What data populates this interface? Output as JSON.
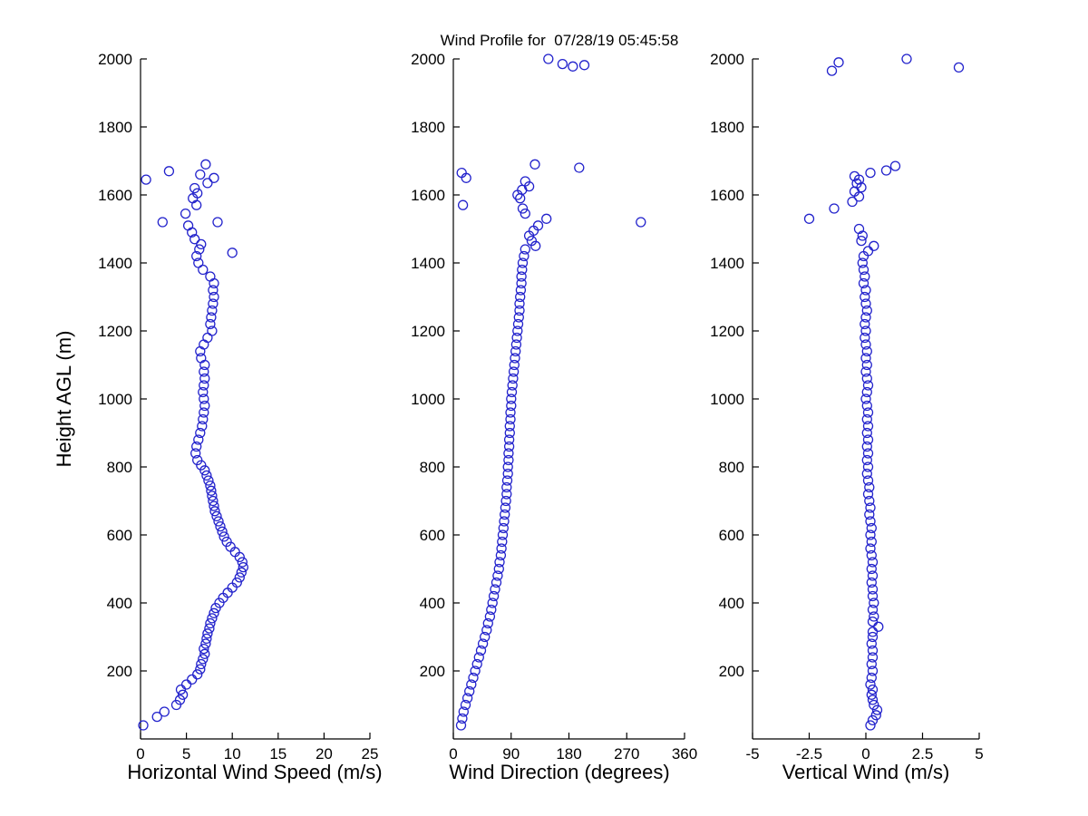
{
  "figure": {
    "title": "Wind Profile for  07/28/19 05:45:58",
    "ylabel": "Height AGL (m)",
    "background_color": "#ffffff",
    "axis_color": "#000000",
    "marker_color": "#2323cc"
  },
  "chart_data": [
    {
      "type": "scatter",
      "name": "horizontal-wind-speed",
      "xlabel": "Horizontal Wind Speed (m/s)",
      "ylabel": "Height AGL (m)",
      "xlim": [
        0,
        25
      ],
      "ylim": [
        0,
        2000
      ],
      "xticks": [
        0,
        5,
        10,
        15,
        20,
        25
      ],
      "yticks": [
        200,
        400,
        600,
        800,
        1000,
        1200,
        1400,
        1600,
        1800,
        2000
      ],
      "marker": "open-circle",
      "points": [
        [
          0.3,
          40
        ],
        [
          1.8,
          65
        ],
        [
          2.6,
          80
        ],
        [
          3.9,
          100
        ],
        [
          4.3,
          115
        ],
        [
          4.6,
          130
        ],
        [
          4.4,
          145
        ],
        [
          5.0,
          160
        ],
        [
          5.6,
          175
        ],
        [
          6.2,
          190
        ],
        [
          6.5,
          205
        ],
        [
          6.6,
          220
        ],
        [
          6.8,
          235
        ],
        [
          7.0,
          250
        ],
        [
          6.9,
          265
        ],
        [
          7.1,
          280
        ],
        [
          7.2,
          295
        ],
        [
          7.3,
          310
        ],
        [
          7.5,
          325
        ],
        [
          7.6,
          340
        ],
        [
          7.8,
          355
        ],
        [
          8.0,
          370
        ],
        [
          8.2,
          385
        ],
        [
          8.6,
          400
        ],
        [
          9.0,
          415
        ],
        [
          9.5,
          430
        ],
        [
          10.0,
          445
        ],
        [
          10.5,
          460
        ],
        [
          10.8,
          475
        ],
        [
          11.0,
          490
        ],
        [
          11.2,
          505
        ],
        [
          11.1,
          520
        ],
        [
          10.8,
          535
        ],
        [
          10.3,
          550
        ],
        [
          9.8,
          565
        ],
        [
          9.4,
          580
        ],
        [
          9.1,
          595
        ],
        [
          8.9,
          610
        ],
        [
          8.7,
          625
        ],
        [
          8.5,
          640
        ],
        [
          8.3,
          655
        ],
        [
          8.1,
          670
        ],
        [
          8.0,
          685
        ],
        [
          7.9,
          700
        ],
        [
          7.8,
          715
        ],
        [
          7.7,
          730
        ],
        [
          7.6,
          745
        ],
        [
          7.4,
          760
        ],
        [
          7.2,
          775
        ],
        [
          7.0,
          790
        ],
        [
          6.6,
          805
        ],
        [
          6.2,
          820
        ],
        [
          6.0,
          840
        ],
        [
          6.1,
          860
        ],
        [
          6.3,
          880
        ],
        [
          6.5,
          900
        ],
        [
          6.7,
          920
        ],
        [
          6.8,
          940
        ],
        [
          6.9,
          960
        ],
        [
          7.0,
          980
        ],
        [
          6.9,
          1000
        ],
        [
          6.8,
          1020
        ],
        [
          6.9,
          1040
        ],
        [
          7.0,
          1060
        ],
        [
          6.9,
          1080
        ],
        [
          7.0,
          1100
        ],
        [
          6.6,
          1120
        ],
        [
          6.5,
          1140
        ],
        [
          6.9,
          1160
        ],
        [
          7.3,
          1180
        ],
        [
          7.8,
          1200
        ],
        [
          7.6,
          1220
        ],
        [
          7.7,
          1240
        ],
        [
          7.8,
          1260
        ],
        [
          7.9,
          1280
        ],
        [
          8.0,
          1300
        ],
        [
          7.9,
          1320
        ],
        [
          8.0,
          1340
        ],
        [
          7.6,
          1360
        ],
        [
          6.8,
          1380
        ],
        [
          6.3,
          1400
        ],
        [
          6.1,
          1420
        ],
        [
          10.0,
          1430
        ],
        [
          6.4,
          1440
        ],
        [
          6.6,
          1455
        ],
        [
          5.9,
          1470
        ],
        [
          5.6,
          1490
        ],
        [
          5.2,
          1510
        ],
        [
          8.4,
          1520
        ],
        [
          2.4,
          1520
        ],
        [
          4.9,
          1545
        ],
        [
          6.1,
          1570
        ],
        [
          5.7,
          1590
        ],
        [
          6.2,
          1605
        ],
        [
          5.9,
          1620
        ],
        [
          7.3,
          1635
        ],
        [
          0.6,
          1645
        ],
        [
          8.0,
          1650
        ],
        [
          6.5,
          1660
        ],
        [
          3.1,
          1670
        ],
        [
          7.1,
          1690
        ]
      ]
    },
    {
      "type": "scatter",
      "name": "wind-direction",
      "xlabel": "Wind Direction (degrees)",
      "ylabel": "Height AGL (m)",
      "xlim": [
        0,
        360
      ],
      "ylim": [
        0,
        2000
      ],
      "xticks": [
        0,
        90,
        180,
        270,
        360
      ],
      "yticks": [
        200,
        400,
        600,
        800,
        1000,
        1200,
        1400,
        1600,
        1800,
        2000
      ],
      "marker": "open-circle",
      "points": [
        [
          12,
          40
        ],
        [
          14,
          60
        ],
        [
          16,
          80
        ],
        [
          19,
          100
        ],
        [
          22,
          120
        ],
        [
          25,
          140
        ],
        [
          28,
          160
        ],
        [
          31,
          180
        ],
        [
          34,
          200
        ],
        [
          37,
          220
        ],
        [
          40,
          240
        ],
        [
          43,
          260
        ],
        [
          46,
          280
        ],
        [
          49,
          300
        ],
        [
          52,
          320
        ],
        [
          54,
          340
        ],
        [
          57,
          360
        ],
        [
          59,
          380
        ],
        [
          61,
          400
        ],
        [
          63,
          420
        ],
        [
          65,
          440
        ],
        [
          67,
          460
        ],
        [
          69,
          480
        ],
        [
          71,
          500
        ],
        [
          72,
          520
        ],
        [
          74,
          540
        ],
        [
          75,
          560
        ],
        [
          76,
          580
        ],
        [
          77,
          600
        ],
        [
          78,
          620
        ],
        [
          79,
          640
        ],
        [
          80,
          660
        ],
        [
          81,
          680
        ],
        [
          82,
          700
        ],
        [
          83,
          720
        ],
        [
          83,
          740
        ],
        [
          84,
          760
        ],
        [
          85,
          780
        ],
        [
          85,
          800
        ],
        [
          86,
          820
        ],
        [
          86,
          840
        ],
        [
          87,
          860
        ],
        [
          87,
          880
        ],
        [
          88,
          900
        ],
        [
          88,
          920
        ],
        [
          89,
          940
        ],
        [
          89,
          960
        ],
        [
          90,
          980
        ],
        [
          90,
          1000
        ],
        [
          91,
          1020
        ],
        [
          92,
          1040
        ],
        [
          93,
          1060
        ],
        [
          94,
          1080
        ],
        [
          95,
          1100
        ],
        [
          96,
          1120
        ],
        [
          97,
          1140
        ],
        [
          98,
          1160
        ],
        [
          99,
          1180
        ],
        [
          100,
          1200
        ],
        [
          101,
          1220
        ],
        [
          102,
          1240
        ],
        [
          103,
          1260
        ],
        [
          103,
          1280
        ],
        [
          104,
          1300
        ],
        [
          105,
          1320
        ],
        [
          106,
          1340
        ],
        [
          106,
          1360
        ],
        [
          107,
          1380
        ],
        [
          108,
          1400
        ],
        [
          110,
          1420
        ],
        [
          112,
          1440
        ],
        [
          128,
          1450
        ],
        [
          122,
          1465
        ],
        [
          118,
          1480
        ],
        [
          125,
          1495
        ],
        [
          132,
          1510
        ],
        [
          292,
          1520
        ],
        [
          145,
          1530
        ],
        [
          112,
          1545
        ],
        [
          108,
          1560
        ],
        [
          15,
          1570
        ],
        [
          104,
          1590
        ],
        [
          100,
          1600
        ],
        [
          107,
          1615
        ],
        [
          118,
          1625
        ],
        [
          112,
          1640
        ],
        [
          20,
          1650
        ],
        [
          13,
          1665
        ],
        [
          196,
          1680
        ],
        [
          127,
          1690
        ],
        [
          148,
          2000
        ],
        [
          170,
          1985
        ],
        [
          186,
          1978
        ],
        [
          204,
          1982
        ]
      ]
    },
    {
      "type": "scatter",
      "name": "vertical-wind",
      "xlabel": "Vertical Wind (m/s)",
      "ylabel": "Height AGL (m)",
      "xlim": [
        -5,
        5
      ],
      "ylim": [
        0,
        2000
      ],
      "xticks": [
        -5,
        -2.5,
        0,
        2.5,
        5
      ],
      "yticks": [
        200,
        400,
        600,
        800,
        1000,
        1200,
        1400,
        1600,
        1800,
        2000
      ],
      "marker": "open-circle",
      "points": [
        [
          0.2,
          40
        ],
        [
          0.3,
          55
        ],
        [
          0.45,
          70
        ],
        [
          0.5,
          85
        ],
        [
          0.35,
          100
        ],
        [
          0.3,
          115
        ],
        [
          0.25,
          130
        ],
        [
          0.3,
          145
        ],
        [
          0.2,
          160
        ],
        [
          0.25,
          180
        ],
        [
          0.3,
          200
        ],
        [
          0.25,
          220
        ],
        [
          0.3,
          240
        ],
        [
          0.3,
          260
        ],
        [
          0.25,
          280
        ],
        [
          0.3,
          300
        ],
        [
          0.3,
          315
        ],
        [
          0.55,
          330
        ],
        [
          0.3,
          345
        ],
        [
          0.35,
          360
        ],
        [
          0.3,
          380
        ],
        [
          0.35,
          400
        ],
        [
          0.3,
          420
        ],
        [
          0.3,
          440
        ],
        [
          0.25,
          460
        ],
        [
          0.3,
          480
        ],
        [
          0.25,
          500
        ],
        [
          0.3,
          520
        ],
        [
          0.25,
          540
        ],
        [
          0.2,
          560
        ],
        [
          0.25,
          580
        ],
        [
          0.2,
          600
        ],
        [
          0.25,
          620
        ],
        [
          0.2,
          640
        ],
        [
          0.15,
          660
        ],
        [
          0.2,
          680
        ],
        [
          0.15,
          700
        ],
        [
          0.1,
          720
        ],
        [
          0.15,
          740
        ],
        [
          0.1,
          760
        ],
        [
          0.05,
          780
        ],
        [
          0.1,
          800
        ],
        [
          0.05,
          820
        ],
        [
          0.1,
          840
        ],
        [
          0.05,
          860
        ],
        [
          0.1,
          880
        ],
        [
          0.05,
          900
        ],
        [
          0.1,
          920
        ],
        [
          0.05,
          940
        ],
        [
          0.1,
          960
        ],
        [
          0.05,
          980
        ],
        [
          0,
          1000
        ],
        [
          0.05,
          1020
        ],
        [
          0.1,
          1040
        ],
        [
          0.05,
          1060
        ],
        [
          0,
          1080
        ],
        [
          0.05,
          1100
        ],
        [
          0,
          1120
        ],
        [
          0.05,
          1140
        ],
        [
          0,
          1160
        ],
        [
          -0.05,
          1180
        ],
        [
          0,
          1200
        ],
        [
          -0.05,
          1220
        ],
        [
          0,
          1240
        ],
        [
          0.05,
          1260
        ],
        [
          0,
          1280
        ],
        [
          -0.05,
          1300
        ],
        [
          0,
          1320
        ],
        [
          -0.1,
          1340
        ],
        [
          -0.05,
          1360
        ],
        [
          -0.1,
          1380
        ],
        [
          -0.15,
          1400
        ],
        [
          -0.1,
          1420
        ],
        [
          0.1,
          1435
        ],
        [
          0.35,
          1450
        ],
        [
          -0.2,
          1465
        ],
        [
          -0.15,
          1480
        ],
        [
          -0.3,
          1500
        ],
        [
          -2.5,
          1530
        ],
        [
          -1.4,
          1560
        ],
        [
          -0.6,
          1580
        ],
        [
          -0.3,
          1595
        ],
        [
          -0.5,
          1610
        ],
        [
          -0.2,
          1622
        ],
        [
          -0.4,
          1634
        ],
        [
          -0.3,
          1645
        ],
        [
          -0.5,
          1655
        ],
        [
          0.2,
          1665
        ],
        [
          0.9,
          1672
        ],
        [
          1.3,
          1685
        ],
        [
          -1.5,
          1965
        ],
        [
          -1.2,
          1990
        ],
        [
          1.8,
          2000
        ],
        [
          4.1,
          1975
        ]
      ]
    }
  ]
}
